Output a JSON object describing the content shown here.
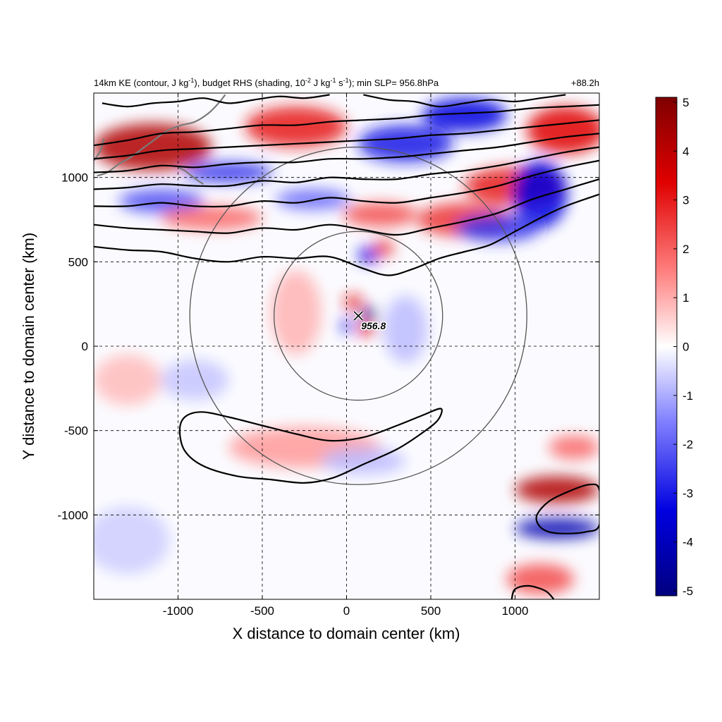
{
  "chart_data": {
    "type": "heatmap",
    "title_left": "14km KE (contour, J kg",
    "title_left_parts": {
      "p1": "14km KE (contour, J kg",
      "sup1": "-1",
      "p2": "), budget RHS (shading, 10",
      "sup2": "-2",
      "p3": " J kg",
      "sup3": "-1",
      "p4": " s",
      "sup4": "-1",
      "p5": "); min SLP= 956.8hPa"
    },
    "title_right": "+88.2h",
    "xlabel": "X distance to domain center (km)",
    "ylabel": "Y distance to domain center (km)",
    "xlim": [
      -1500,
      1500
    ],
    "ylim": [
      -1500,
      1500
    ],
    "xticks": [
      -1000,
      -500,
      0,
      500,
      1000
    ],
    "yticks": [
      -1000,
      -500,
      0,
      500,
      1000
    ],
    "xtick_labels": [
      "-1000",
      "-500",
      "0",
      "500",
      "1000"
    ],
    "ytick_labels": [
      "-1000",
      "-500",
      "0",
      "500",
      "1000"
    ],
    "colorbar": {
      "min": -5,
      "max": 5,
      "ticks": [
        5,
        4,
        3,
        2,
        1,
        0,
        -1,
        -2,
        -3,
        -4,
        -5
      ],
      "tick_labels": [
        "5",
        "4",
        "3",
        "2",
        "1",
        "0",
        "-1",
        "-2",
        "-3",
        "-4",
        "-5"
      ],
      "colors": [
        "#7f0000",
        "#e00000",
        "#ff8080",
        "#ffffff",
        "#8080ff",
        "#0000e0",
        "#00007f"
      ]
    },
    "center": {
      "x": 70,
      "y": 180,
      "label": "956.8",
      "marker": "x-mark"
    },
    "rings_radius_km": [
      500,
      1000
    ],
    "ke_contours": [
      {
        "name": "ke-contour-1",
        "points": [
          [
            -1500,
            590
          ],
          [
            -1300,
            570
          ],
          [
            -1100,
            560
          ],
          [
            -900,
            520
          ],
          [
            -700,
            500
          ],
          [
            -500,
            530
          ],
          [
            -300,
            520
          ],
          [
            -100,
            530
          ],
          [
            100,
            460
          ],
          [
            250,
            420
          ],
          [
            400,
            460
          ],
          [
            550,
            520
          ],
          [
            700,
            560
          ],
          [
            850,
            600
          ],
          [
            1000,
            680
          ],
          [
            1150,
            760
          ],
          [
            1300,
            830
          ],
          [
            1500,
            900
          ]
        ]
      },
      {
        "name": "ke-contour-2",
        "points": [
          [
            -1500,
            720
          ],
          [
            -1300,
            700
          ],
          [
            -1100,
            690
          ],
          [
            -900,
            680
          ],
          [
            -700,
            670
          ],
          [
            -500,
            700
          ],
          [
            -300,
            690
          ],
          [
            -100,
            720
          ],
          [
            100,
            690
          ],
          [
            300,
            660
          ],
          [
            500,
            700
          ],
          [
            700,
            740
          ],
          [
            900,
            790
          ],
          [
            1100,
            870
          ],
          [
            1300,
            930
          ],
          [
            1500,
            990
          ]
        ]
      },
      {
        "name": "ke-contour-3",
        "points": [
          [
            -1500,
            830
          ],
          [
            -1300,
            830
          ],
          [
            -1100,
            850
          ],
          [
            -900,
            830
          ],
          [
            -700,
            830
          ],
          [
            -500,
            860
          ],
          [
            -300,
            850
          ],
          [
            -100,
            880
          ],
          [
            100,
            860
          ],
          [
            300,
            850
          ],
          [
            500,
            880
          ],
          [
            700,
            910
          ],
          [
            900,
            950
          ],
          [
            1100,
            1010
          ],
          [
            1300,
            1060
          ],
          [
            1500,
            1100
          ]
        ]
      },
      {
        "name": "ke-contour-4",
        "points": [
          [
            -1500,
            930
          ],
          [
            -1300,
            940
          ],
          [
            -1100,
            960
          ],
          [
            -900,
            950
          ],
          [
            -700,
            950
          ],
          [
            -500,
            980
          ],
          [
            -300,
            970
          ],
          [
            -100,
            1000
          ],
          [
            100,
            990
          ],
          [
            300,
            990
          ],
          [
            500,
            1020
          ],
          [
            700,
            1040
          ],
          [
            900,
            1070
          ],
          [
            1100,
            1110
          ],
          [
            1300,
            1150
          ],
          [
            1500,
            1180
          ]
        ]
      },
      {
        "name": "ke-contour-5",
        "points": [
          [
            -1500,
            1030
          ],
          [
            -1300,
            1040
          ],
          [
            -1100,
            1070
          ],
          [
            -900,
            1060
          ],
          [
            -700,
            1080
          ],
          [
            -500,
            1090
          ],
          [
            -300,
            1090
          ],
          [
            -100,
            1110
          ],
          [
            100,
            1110
          ],
          [
            300,
            1120
          ],
          [
            500,
            1140
          ],
          [
            700,
            1160
          ],
          [
            900,
            1180
          ],
          [
            1100,
            1210
          ],
          [
            1300,
            1240
          ],
          [
            1500,
            1260
          ]
        ]
      },
      {
        "name": "ke-contour-6",
        "points": [
          [
            -1500,
            1110
          ],
          [
            -1300,
            1130
          ],
          [
            -1100,
            1160
          ],
          [
            -900,
            1170
          ],
          [
            -700,
            1180
          ],
          [
            -500,
            1190
          ],
          [
            -300,
            1200
          ],
          [
            -100,
            1210
          ],
          [
            100,
            1220
          ],
          [
            300,
            1230
          ],
          [
            500,
            1250
          ],
          [
            700,
            1260
          ],
          [
            900,
            1280
          ],
          [
            1100,
            1300
          ],
          [
            1300,
            1320
          ],
          [
            1500,
            1340
          ]
        ]
      },
      {
        "name": "ke-contour-7",
        "points": [
          [
            -1500,
            1190
          ],
          [
            -1300,
            1220
          ],
          [
            -1100,
            1260
          ],
          [
            -900,
            1270
          ],
          [
            -700,
            1290
          ],
          [
            -500,
            1310
          ],
          [
            -300,
            1310
          ],
          [
            -100,
            1330
          ],
          [
            100,
            1340
          ],
          [
            300,
            1350
          ],
          [
            500,
            1370
          ],
          [
            700,
            1380
          ],
          [
            900,
            1390
          ],
          [
            1100,
            1410
          ],
          [
            1300,
            1420
          ],
          [
            1500,
            1430
          ]
        ]
      },
      {
        "name": "ke-contour-8",
        "points": [
          [
            -1450,
            1440
          ],
          [
            -1300,
            1420
          ],
          [
            -1150,
            1440
          ],
          [
            -1000,
            1450
          ],
          [
            -850,
            1470
          ],
          [
            -700,
            1440
          ],
          [
            -550,
            1460
          ],
          [
            -400,
            1480
          ],
          [
            -250,
            1470
          ],
          [
            -100,
            1490
          ]
        ]
      },
      {
        "name": "ke-contour-9",
        "points": [
          [
            100,
            1490
          ],
          [
            250,
            1460
          ],
          [
            400,
            1450
          ],
          [
            550,
            1420
          ],
          [
            700,
            1440
          ],
          [
            850,
            1460
          ],
          [
            1000,
            1450
          ],
          [
            1150,
            1470
          ],
          [
            1300,
            1490
          ]
        ]
      }
    ],
    "ke_closed_contours": [
      {
        "name": "ke-contour-south",
        "points": [
          [
            -960,
            -420
          ],
          [
            -860,
            -390
          ],
          [
            -700,
            -420
          ],
          [
            -500,
            -470
          ],
          [
            -300,
            -520
          ],
          [
            -100,
            -560
          ],
          [
            100,
            -540
          ],
          [
            300,
            -470
          ],
          [
            450,
            -410
          ],
          [
            560,
            -370
          ],
          [
            540,
            -440
          ],
          [
            440,
            -520
          ],
          [
            300,
            -610
          ],
          [
            100,
            -700
          ],
          [
            -80,
            -780
          ],
          [
            -250,
            -810
          ],
          [
            -450,
            -790
          ],
          [
            -650,
            -770
          ],
          [
            -850,
            -710
          ],
          [
            -960,
            -620
          ],
          [
            -990,
            -500
          ]
        ]
      },
      {
        "name": "ke-contour-southeast",
        "points": [
          [
            1130,
            -1000
          ],
          [
            1200,
            -920
          ],
          [
            1320,
            -860
          ],
          [
            1440,
            -820
          ],
          [
            1500,
            -850
          ],
          [
            1500,
            -1060
          ],
          [
            1420,
            -1100
          ],
          [
            1300,
            -1110
          ],
          [
            1200,
            -1100
          ],
          [
            1140,
            -1060
          ]
        ]
      },
      {
        "name": "ke-contour-bottom-right",
        "points": [
          [
            980,
            -1500
          ],
          [
            1000,
            -1440
          ],
          [
            1080,
            -1420
          ],
          [
            1180,
            -1450
          ],
          [
            1230,
            -1500
          ]
        ]
      }
    ],
    "shading_blobs": [
      {
        "name": "shade-red-nw",
        "x": -1150,
        "y": 1180,
        "rx": 350,
        "ry": 140,
        "value": 4.5
      },
      {
        "name": "shade-red-n",
        "x": -300,
        "y": 1300,
        "rx": 300,
        "ry": 120,
        "value": 3.5
      },
      {
        "name": "shade-blue-n",
        "x": 350,
        "y": 1200,
        "rx": 280,
        "ry": 110,
        "value": -3.5
      },
      {
        "name": "shade-blue-ne",
        "x": 700,
        "y": 1370,
        "rx": 250,
        "ry": 100,
        "value": -4
      },
      {
        "name": "shade-red-ne",
        "x": 1300,
        "y": 1280,
        "rx": 230,
        "ry": 140,
        "value": 4
      },
      {
        "name": "shade-red-e",
        "x": 1000,
        "y": 950,
        "rx": 300,
        "ry": 110,
        "value": 3.5
      },
      {
        "name": "shade-blue-e",
        "x": 1150,
        "y": 900,
        "rx": 160,
        "ry": 200,
        "value": -4
      },
      {
        "name": "shade-red-mid-e",
        "x": 700,
        "y": 750,
        "rx": 280,
        "ry": 100,
        "value": 3
      },
      {
        "name": "shade-blue-mid-e",
        "x": 900,
        "y": 700,
        "rx": 250,
        "ry": 80,
        "value": -3
      },
      {
        "name": "shade-blue-w",
        "x": -1100,
        "y": 860,
        "rx": 250,
        "ry": 70,
        "value": -2.5
      },
      {
        "name": "shade-red-w",
        "x": -800,
        "y": 760,
        "rx": 300,
        "ry": 70,
        "value": 2
      },
      {
        "name": "shade-blue-nw",
        "x": -700,
        "y": 1030,
        "rx": 260,
        "ry": 60,
        "value": -3
      },
      {
        "name": "shade-red-c-n",
        "x": 200,
        "y": 780,
        "rx": 220,
        "ry": 70,
        "value": 2.5
      },
      {
        "name": "shade-blue-c-n",
        "x": -200,
        "y": 870,
        "rx": 220,
        "ry": 60,
        "value": -2
      },
      {
        "name": "shade-blue-core",
        "x": 130,
        "y": 190,
        "rx": 50,
        "ry": 40,
        "value": -5
      },
      {
        "name": "shade-red-core-s",
        "x": 120,
        "y": 100,
        "rx": 60,
        "ry": 35,
        "value": 4
      },
      {
        "name": "shade-red-core-n",
        "x": 40,
        "y": 260,
        "rx": 55,
        "ry": 45,
        "value": 3.5
      },
      {
        "name": "shade-blue-core-w",
        "x": 0,
        "y": 120,
        "rx": 40,
        "ry": 40,
        "value": -3
      },
      {
        "name": "shade-blue-north-eye",
        "x": 130,
        "y": 540,
        "rx": 60,
        "ry": 50,
        "value": -4
      },
      {
        "name": "shade-red-north-eye",
        "x": 220,
        "y": 580,
        "rx": 60,
        "ry": 50,
        "value": 3
      },
      {
        "name": "shade-red-band-s",
        "x": -250,
        "y": -600,
        "rx": 450,
        "ry": 120,
        "value": 1.2
      },
      {
        "name": "shade-blue-band-s",
        "x": 100,
        "y": -680,
        "rx": 250,
        "ry": 80,
        "value": -0.8
      },
      {
        "name": "shade-red-se",
        "x": 1250,
        "y": -850,
        "rx": 250,
        "ry": 80,
        "value": 4.5
      },
      {
        "name": "shade-blue-se",
        "x": 1250,
        "y": -1080,
        "rx": 250,
        "ry": 60,
        "value": -4.5
      },
      {
        "name": "shade-red-se-2",
        "x": 1150,
        "y": -1380,
        "rx": 200,
        "ry": 90,
        "value": 2.5
      },
      {
        "name": "shade-red-se-3",
        "x": 1350,
        "y": -600,
        "rx": 150,
        "ry": 70,
        "value": 2
      },
      {
        "name": "shade-blue-sw",
        "x": -1300,
        "y": -1150,
        "rx": 250,
        "ry": 200,
        "value": -0.6
      },
      {
        "name": "shade-red-w-mid",
        "x": -1300,
        "y": -200,
        "rx": 200,
        "ry": 150,
        "value": 0.8
      },
      {
        "name": "shade-blue-sw-2",
        "x": -900,
        "y": -200,
        "rx": 200,
        "ry": 120,
        "value": -0.7
      },
      {
        "name": "shade-red-ring",
        "x": -300,
        "y": 200,
        "rx": 150,
        "ry": 250,
        "value": 0.9
      },
      {
        "name": "shade-blue-ring",
        "x": 350,
        "y": 100,
        "rx": 130,
        "ry": 200,
        "value": -0.8
      }
    ],
    "coastlines": [
      {
        "name": "coastline-japan",
        "points": [
          [
            -1480,
            1010
          ],
          [
            -1420,
            1030
          ],
          [
            -1350,
            1080
          ],
          [
            -1280,
            1120
          ],
          [
            -1200,
            1180
          ],
          [
            -1130,
            1230
          ],
          [
            -1060,
            1280
          ],
          [
            -980,
            1310
          ],
          [
            -900,
            1330
          ],
          [
            -820,
            1380
          ],
          [
            -760,
            1440
          ],
          [
            -720,
            1490
          ]
        ]
      },
      {
        "name": "coastline-ryukyu",
        "points": [
          [
            -1000,
            1060
          ],
          [
            -960,
            1040
          ],
          [
            -920,
            1010
          ],
          [
            -880,
            980
          ],
          [
            -850,
            960
          ]
        ]
      },
      {
        "name": "coastline-korea",
        "points": [
          [
            -1500,
            1100
          ],
          [
            -1460,
            1160
          ],
          [
            -1440,
            1230
          ]
        ]
      }
    ]
  }
}
